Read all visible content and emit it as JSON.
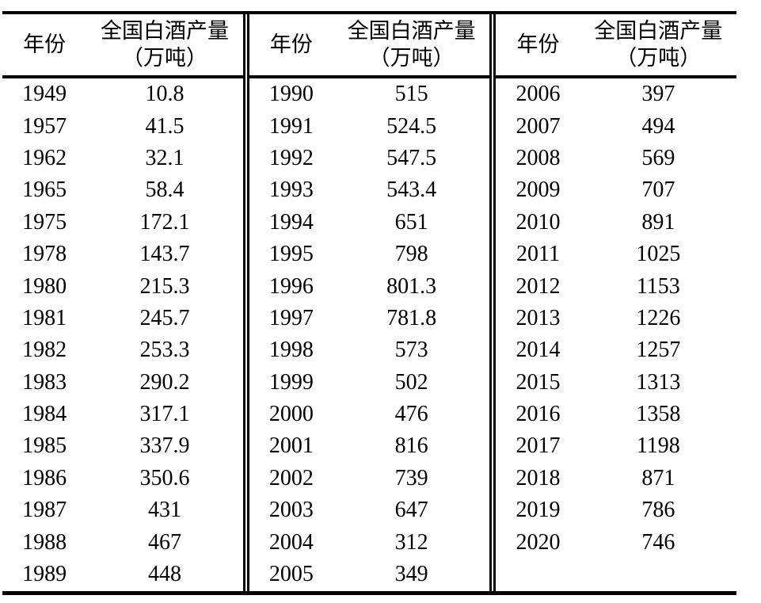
{
  "table": {
    "header": {
      "year": "年份",
      "production_line1": "全国白酒产量",
      "production_line2": "（万吨）"
    },
    "groups": [
      {
        "rows": [
          {
            "year": "1949",
            "production": "10.8"
          },
          {
            "year": "1957",
            "production": "41.5"
          },
          {
            "year": "1962",
            "production": "32.1"
          },
          {
            "year": "1965",
            "production": "58.4"
          },
          {
            "year": "1975",
            "production": "172.1"
          },
          {
            "year": "1978",
            "production": "143.7"
          },
          {
            "year": "1980",
            "production": "215.3"
          },
          {
            "year": "1981",
            "production": "245.7"
          },
          {
            "year": "1982",
            "production": "253.3"
          },
          {
            "year": "1983",
            "production": "290.2"
          },
          {
            "year": "1984",
            "production": "317.1"
          },
          {
            "year": "1985",
            "production": "337.9"
          },
          {
            "year": "1986",
            "production": "350.6"
          },
          {
            "year": "1987",
            "production": "431"
          },
          {
            "year": "1988",
            "production": "467"
          },
          {
            "year": "1989",
            "production": "448"
          }
        ]
      },
      {
        "rows": [
          {
            "year": "1990",
            "production": "515"
          },
          {
            "year": "1991",
            "production": "524.5"
          },
          {
            "year": "1992",
            "production": "547.5"
          },
          {
            "year": "1993",
            "production": "543.4"
          },
          {
            "year": "1994",
            "production": "651"
          },
          {
            "year": "1995",
            "production": "798"
          },
          {
            "year": "1996",
            "production": "801.3"
          },
          {
            "year": "1997",
            "production": "781.8"
          },
          {
            "year": "1998",
            "production": "573"
          },
          {
            "year": "1999",
            "production": "502"
          },
          {
            "year": "2000",
            "production": "476"
          },
          {
            "year": "2001",
            "production": "816"
          },
          {
            "year": "2002",
            "production": "739"
          },
          {
            "year": "2003",
            "production": "647"
          },
          {
            "year": "2004",
            "production": "312"
          },
          {
            "year": "2005",
            "production": "349"
          }
        ]
      },
      {
        "rows": [
          {
            "year": "2006",
            "production": "397"
          },
          {
            "year": "2007",
            "production": "494"
          },
          {
            "year": "2008",
            "production": "569"
          },
          {
            "year": "2009",
            "production": "707"
          },
          {
            "year": "2010",
            "production": "891"
          },
          {
            "year": "2011",
            "production": "1025"
          },
          {
            "year": "2012",
            "production": "1153"
          },
          {
            "year": "2013",
            "production": "1226"
          },
          {
            "year": "2014",
            "production": "1257"
          },
          {
            "year": "2015",
            "production": "1313"
          },
          {
            "year": "2016",
            "production": "1358"
          },
          {
            "year": "2017",
            "production": "1198"
          },
          {
            "year": "2018",
            "production": "871"
          },
          {
            "year": "2019",
            "production": "786"
          },
          {
            "year": "2020",
            "production": "746"
          }
        ]
      }
    ]
  }
}
